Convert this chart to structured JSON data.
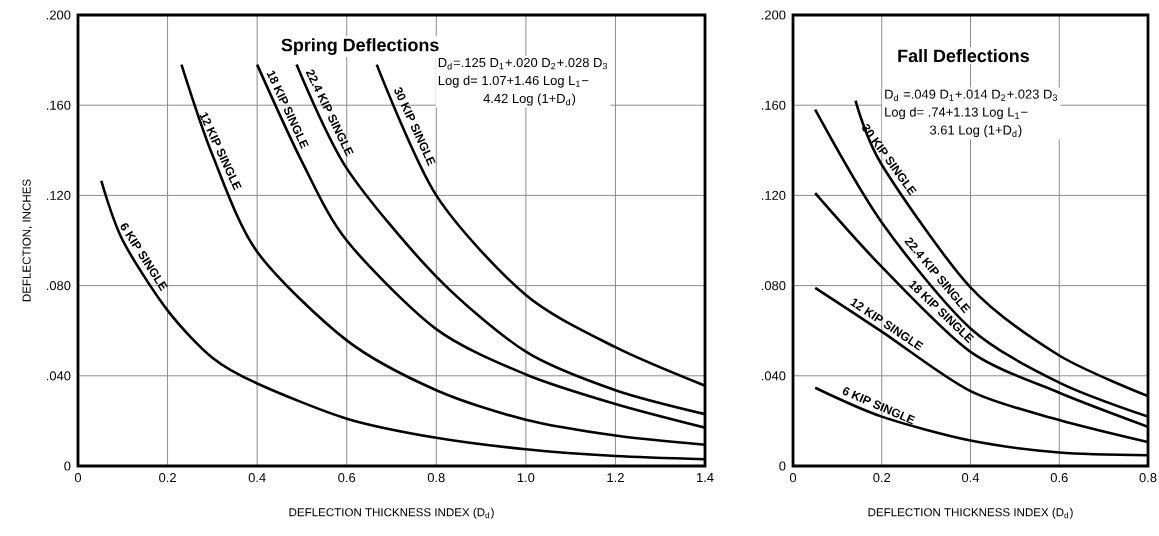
{
  "chart_data": [
    {
      "type": "line",
      "title": "Spring Deflections",
      "xlabel": "DEFLECTION THICKNESS INDEX (D$_{d}$)",
      "ylabel": "DEFLECTION, INCHES",
      "annotations": [
        "D$_{d}$=.125 D$_{1}$+.020 D$_{2}$+.028 D$_{3}$",
        "Log d= 1.07+1.46 Log L$_{1}$−",
        "4.42 Log (1+D$_{d}$)"
      ],
      "xlim": [
        0,
        1.4
      ],
      "ylim": [
        0,
        0.2
      ],
      "xticks": [
        0,
        0.2,
        0.4,
        0.6,
        0.8,
        {
          "value": 1,
          "label": "1.0"
        },
        1.2,
        1.4
      ],
      "yticks": [
        0,
        {
          "value": 0.04,
          "label": ".040"
        },
        {
          "value": 0.08,
          "label": ".080"
        },
        {
          "value": 0.12,
          "label": ".120"
        },
        {
          "value": 0.16,
          "label": ".160"
        },
        {
          "value": 0.2,
          "label": ".200"
        }
      ],
      "grid": true,
      "marker": "none",
      "line_style": "solid",
      "series": [
        {
          "name": "6 KIP SINGLE",
          "color": "#000000",
          "x": [
            0.052,
            0.1,
            0.2,
            0.3,
            0.4,
            0.6,
            0.8,
            1.0,
            1.2,
            1.4
          ],
          "values": [
            0.1265,
            0.1,
            0.069,
            0.048,
            0.0366,
            0.021,
            0.0125,
            0.0074,
            0.0044,
            0.003
          ]
        },
        {
          "name": "12 KIP SINGLE",
          "color": "#000000",
          "x": [
            0.231,
            0.3,
            0.4,
            0.6,
            0.8,
            1.0,
            1.2,
            1.4
          ],
          "values": [
            0.178,
            0.138,
            0.095,
            0.0557,
            0.0336,
            0.0205,
            0.0135,
            0.0094
          ]
        },
        {
          "name": "18 KIP SINGLE",
          "color": "#000000",
          "x": [
            0.4,
            0.5,
            0.6,
            0.8,
            1.0,
            1.2,
            1.4
          ],
          "values": [
            0.178,
            0.135,
            0.1,
            0.0607,
            0.0406,
            0.0275,
            0.017
          ]
        },
        {
          "name": "22.4 KIP SINGLE",
          "color": "#000000",
          "x": [
            0.488,
            0.6,
            0.8,
            1.0,
            1.2,
            1.4
          ],
          "values": [
            0.178,
            0.132,
            0.084,
            0.0507,
            0.0336,
            0.023
          ]
        },
        {
          "name": "30 KIP SINGLE",
          "color": "#000000",
          "x": [
            0.667,
            0.8,
            1.0,
            1.2,
            1.4
          ],
          "values": [
            0.178,
            0.12,
            0.0758,
            0.0527,
            0.0356
          ]
        }
      ]
    },
    {
      "type": "line",
      "title": "Fall Deflections",
      "xlabel": "DEFLECTION THICKNESS INDEX (D$_{d}$)",
      "annotations": [
        "D$_{d}$ =.049 D$_{1}$+.014 D$_{2}$+.023 D$_{3}$",
        "Log d= .74+1.13 Log L$_{1}$−",
        "3.61 Log (1+D$_{d}$)"
      ],
      "xlim": [
        0,
        0.8
      ],
      "ylim": [
        0,
        0.2
      ],
      "xticks": [
        0,
        0.2,
        0.4,
        0.6,
        0.8
      ],
      "yticks": [
        0,
        {
          "value": 0.04,
          "label": ".040"
        },
        {
          "value": 0.08,
          "label": ".080"
        },
        {
          "value": 0.12,
          "label": ".120"
        },
        {
          "value": 0.16,
          "label": ".160"
        },
        {
          "value": 0.2,
          "label": ".200"
        }
      ],
      "grid": true,
      "marker": "none",
      "line_style": "solid",
      "series": [
        {
          "name": "6 KIP SINGLE",
          "color": "#000000",
          "x": [
            0.05,
            0.2,
            0.4,
            0.6,
            0.8
          ],
          "values": [
            0.0347,
            0.0219,
            0.0113,
            0.006,
            0.0048
          ]
        },
        {
          "name": "12 KIP SINGLE",
          "color": "#000000",
          "x": [
            0.05,
            0.2,
            0.4,
            0.6,
            0.8
          ],
          "values": [
            0.079,
            0.0596,
            0.0332,
            0.0204,
            0.0106
          ]
        },
        {
          "name": "18 KIP SINGLE",
          "color": "#000000",
          "x": [
            0.05,
            0.2,
            0.4,
            0.6,
            0.8
          ],
          "values": [
            0.121,
            0.0883,
            0.0506,
            0.0325,
            0.0174
          ]
        },
        {
          "name": "22.4 KIP SINGLE",
          "color": "#000000",
          "x": [
            0.05,
            0.2,
            0.4,
            0.6,
            0.8
          ],
          "values": [
            0.158,
            0.108,
            0.061,
            0.037,
            0.0219
          ]
        },
        {
          "name": "30 KIP SINGLE",
          "color": "#000000",
          "x": [
            0.141,
            0.2,
            0.4,
            0.6,
            0.8
          ],
          "values": [
            0.162,
            0.1336,
            0.0792,
            0.049,
            0.031
          ]
        }
      ]
    }
  ]
}
